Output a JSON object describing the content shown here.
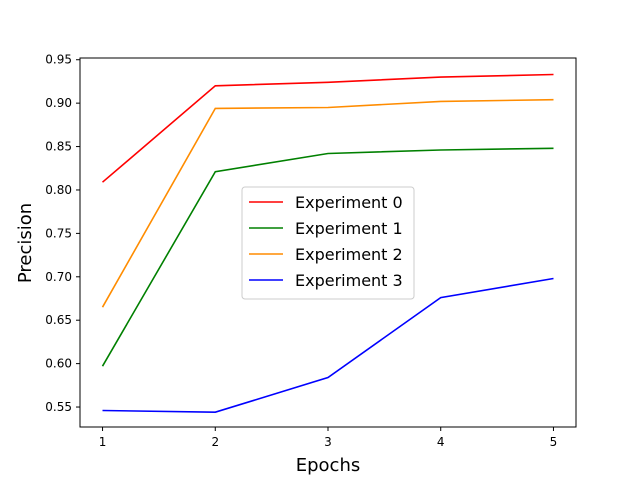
{
  "chart_data": {
    "type": "line",
    "title": "",
    "xlabel": "Epochs",
    "ylabel": "Precision",
    "x": [
      1,
      2,
      3,
      4,
      5
    ],
    "xlim": [
      0.8,
      5.2
    ],
    "ylim": [
      0.527,
      0.952
    ],
    "xticks": [
      1,
      2,
      3,
      4,
      5
    ],
    "yticks": [
      0.55,
      0.6,
      0.65,
      0.7,
      0.75,
      0.8,
      0.85,
      0.9,
      0.95
    ],
    "grid": false,
    "legend": {
      "placement": "center"
    },
    "series": [
      {
        "name": "Experiment 0",
        "color": "#ff0000",
        "values": [
          0.809,
          0.92,
          0.924,
          0.93,
          0.933
        ]
      },
      {
        "name": "Experiment 1",
        "color": "#008000",
        "values": [
          0.597,
          0.821,
          0.842,
          0.846,
          0.848
        ]
      },
      {
        "name": "Experiment 2",
        "color": "#ff8c00",
        "values": [
          0.665,
          0.894,
          0.895,
          0.902,
          0.904
        ]
      },
      {
        "name": "Experiment 3",
        "color": "#0000ff",
        "values": [
          0.546,
          0.544,
          0.584,
          0.676,
          0.698
        ]
      }
    ]
  }
}
